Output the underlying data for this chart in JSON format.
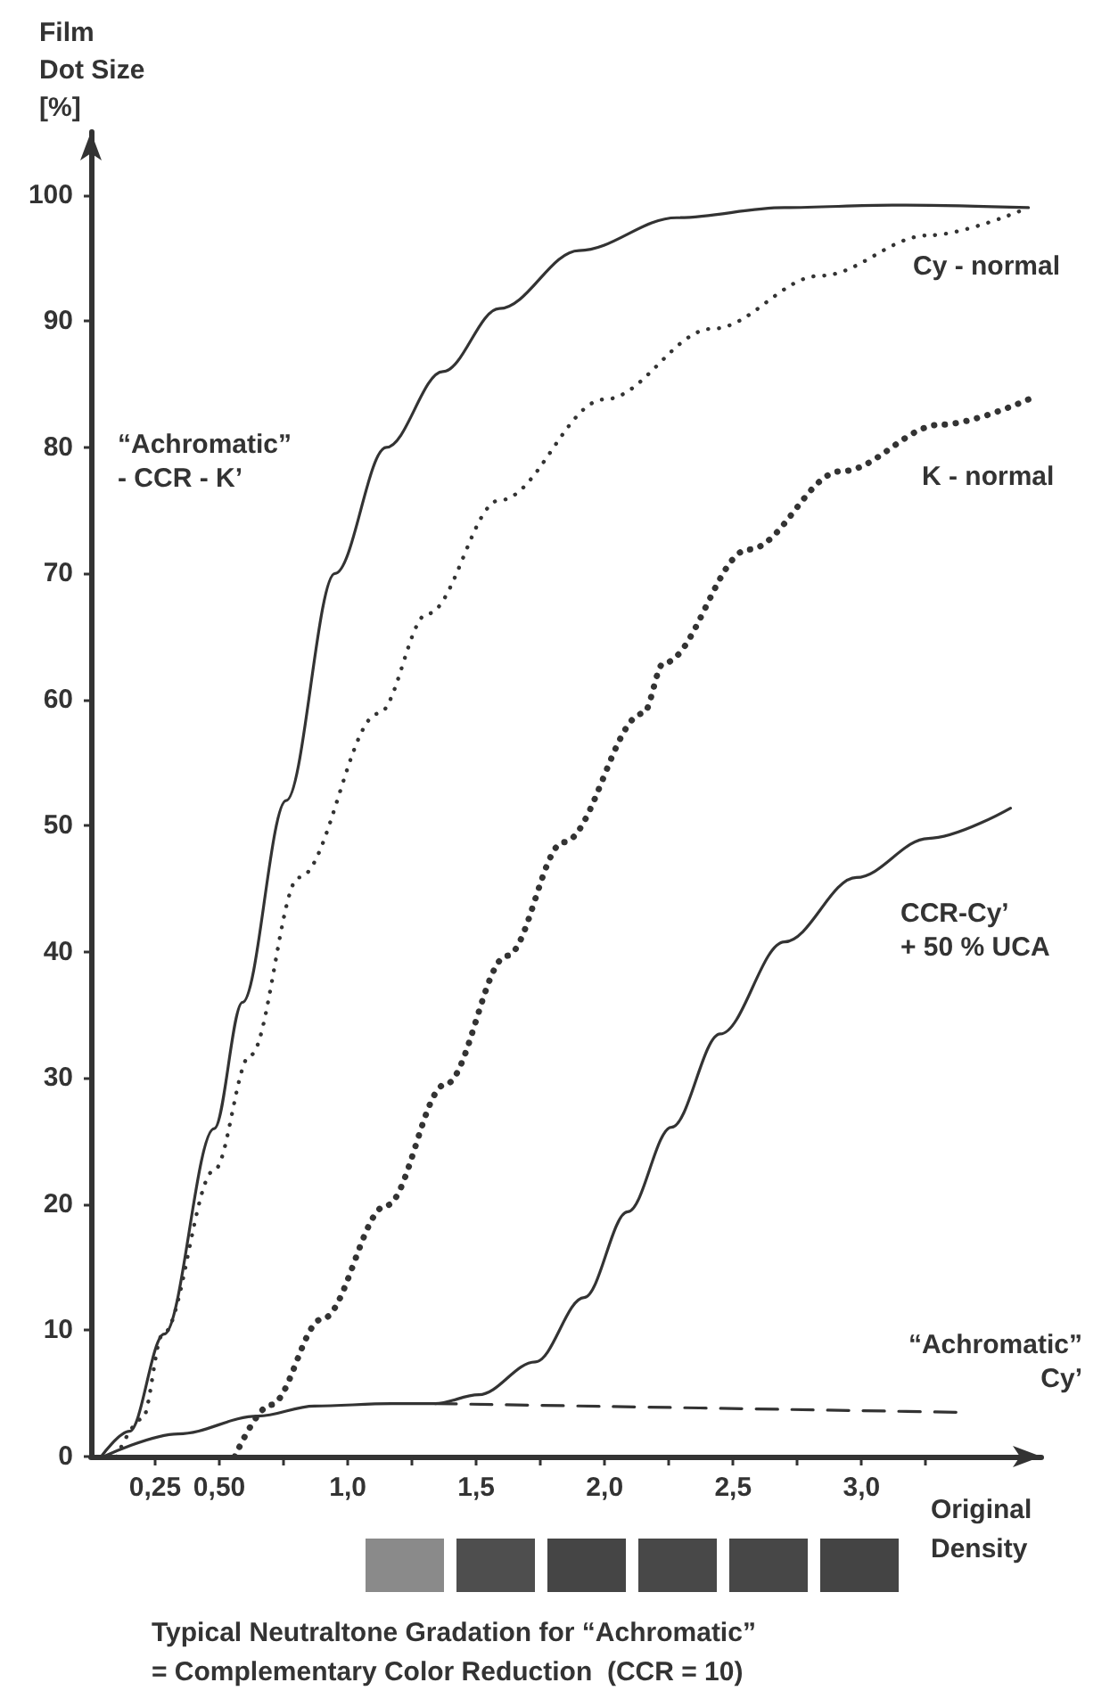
{
  "chart_data": {
    "type": "line",
    "title": "Typical Neutraltone Gradation for “Achromatic”\n= Complementary Color Reduction  (CCR = 10)",
    "xlabel": "Original\nDensity",
    "ylabel": "Film\nDot Size\n[%]",
    "xlim": [
      0,
      3.7
    ],
    "ylim": [
      0,
      105
    ],
    "xticks": [
      {
        "value": 0.25,
        "label": "0,25"
      },
      {
        "value": 0.5,
        "label": "0,50"
      },
      {
        "value": 0.75,
        "label": null
      },
      {
        "value": 1,
        "label": "1,0"
      },
      {
        "value": 1.25,
        "label": null
      },
      {
        "value": 1.5,
        "label": "1,5"
      },
      {
        "value": 1.75,
        "label": null
      },
      {
        "value": 2,
        "label": "2,0"
      },
      {
        "value": 2.25,
        "label": null
      },
      {
        "value": 2.5,
        "label": "2,5"
      },
      {
        "value": 2.75,
        "label": null
      },
      {
        "value": 3,
        "label": "3,0"
      },
      {
        "value": 3.25,
        "label": null
      }
    ],
    "yticks": [
      0,
      10,
      20,
      30,
      40,
      50,
      60,
      70,
      80,
      90,
      100
    ],
    "grid": false,
    "legend": false,
    "marker": "none",
    "series": [
      {
        "name": "“Achromatic”\n- CCR - K’",
        "color": "#333333",
        "line_style": "solid",
        "x": [
          0.04,
          0.15,
          0.285,
          0.48,
          0.59,
          0.76,
          0.95,
          1.15,
          1.37,
          1.59,
          1.9,
          2.28,
          2.7,
          3.12,
          3.65
        ],
        "values": [
          0,
          2,
          9.7,
          26,
          36,
          52,
          70,
          80,
          86,
          91,
          95.6,
          98.2,
          99,
          99.2,
          99
        ]
      },
      {
        "name": "Cy - normal",
        "color": "#333333",
        "line_style": "dotted",
        "x": [
          0.1,
          0.2,
          0.28,
          0.48,
          0.62,
          0.81,
          1.12,
          1.31,
          1.59,
          2.0,
          2.42,
          2.84,
          3.26,
          3.65
        ],
        "values": [
          0,
          3,
          9.7,
          22.7,
          31.8,
          45.9,
          58.9,
          66.8,
          75.8,
          83.8,
          89.4,
          93.6,
          96.8,
          99
        ]
      },
      {
        "name": "K - normal",
        "color": "#333333",
        "line_style": "dotted",
        "x": [
          0.56,
          0.7,
          0.9,
          1.15,
          1.38,
          1.62,
          1.84,
          2.15,
          2.23,
          2.56,
          2.92,
          3.31,
          3.65
        ],
        "values": [
          0,
          4.1,
          10.9,
          19.9,
          29.5,
          39.7,
          48.7,
          58.9,
          62.9,
          71.9,
          78.1,
          81.8,
          83.8
        ]
      },
      {
        "name": "CCR-Cy’\n+ 50 % UCA",
        "color": "#333333",
        "line_style": "solid",
        "x": [
          0.05,
          0.34,
          0.65,
          0.87,
          1.17,
          1.34,
          1.51,
          1.73,
          1.92,
          2.09,
          2.26,
          2.45,
          2.7,
          2.98,
          3.26,
          3.58
        ],
        "values": [
          0,
          1.8,
          3.2,
          4,
          4.2,
          4.2,
          4.9,
          7.5,
          12.6,
          19.4,
          26.1,
          33.5,
          40.8,
          45.9,
          49,
          51.4
        ]
      },
      {
        "name": "“Achromatic”\nCy’",
        "color": "#333333",
        "line_style": "dashed",
        "x": [
          1.34,
          3.4
        ],
        "values": [
          4.2,
          3.5
        ]
      }
    ]
  }
}
